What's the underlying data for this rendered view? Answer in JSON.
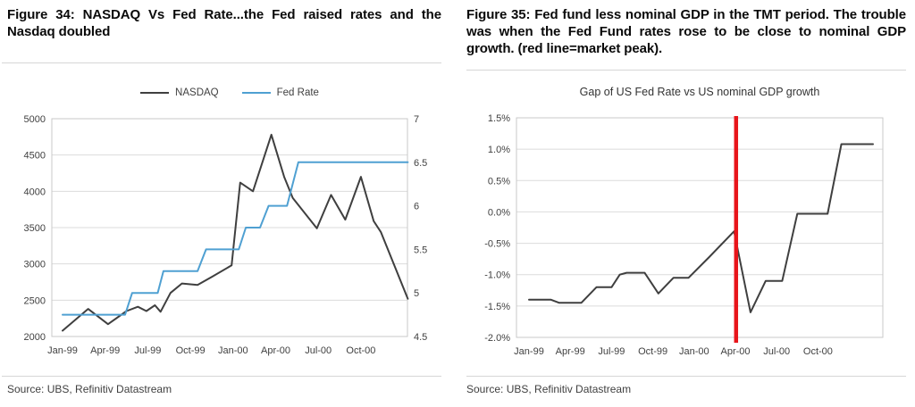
{
  "figure34": {
    "title": "Figure 34: NASDAQ Vs Fed Rate...the Fed raised rates and the Nasdaq doubled",
    "source": "Source: UBS, Refinitiv Datastream"
  },
  "figure35": {
    "title": "Figure 35: Fed fund less nominal GDP in the TMT period. The trouble was when the Fed Fund rates rose to be close to nominal GDP growth. (red line=market peak).",
    "source": "Source: UBS, Refinitiv Datastream"
  },
  "colors": {
    "gridline": "#dbdbdb",
    "plot_border": "#c9c9c9",
    "axis_text": "#404040",
    "market_peak_line": "#e8151b"
  },
  "chart_data": [
    {
      "id": "nasdaq_vs_fed_rate",
      "type": "line",
      "title": "",
      "grid": "horizontal",
      "legend_position": "top-center",
      "x_unit": "months since Jan-99",
      "x_tick_labels": [
        "Jan-99",
        "Apr-99",
        "Jul-99",
        "Oct-99",
        "Jan-00",
        "Apr-00",
        "Jul-00",
        "Oct-00"
      ],
      "x_tick_months": [
        0,
        3,
        6,
        9,
        12,
        15,
        18,
        21
      ],
      "y_left_axis": {
        "min": 2000,
        "max": 5000,
        "tick_labels": [
          "5000",
          "4500",
          "4000",
          "3500",
          "3000",
          "2500",
          "2000"
        ]
      },
      "y_right_axis": {
        "min": 4.5,
        "max": 7,
        "tick_labels": [
          "7",
          "6.5",
          "6",
          "5.5",
          "5",
          "4.5"
        ]
      },
      "series": [
        {
          "name": "NASDAQ",
          "axis": "left",
          "color": "#3f3f3f",
          "points": [
            [
              0,
              2080
            ],
            [
              1.8,
              2380
            ],
            [
              3.2,
              2170
            ],
            [
              4.5,
              2350
            ],
            [
              5.3,
              2410
            ],
            [
              5.9,
              2350
            ],
            [
              6.5,
              2430
            ],
            [
              6.9,
              2340
            ],
            [
              7.6,
              2600
            ],
            [
              8.4,
              2730
            ],
            [
              9.5,
              2710
            ],
            [
              10.5,
              2820
            ],
            [
              11.9,
              2980
            ],
            [
              12.5,
              4120
            ],
            [
              13.4,
              4000
            ],
            [
              14.7,
              4780
            ],
            [
              15.6,
              4200
            ],
            [
              16.2,
              3910
            ],
            [
              17.9,
              3490
            ],
            [
              18.9,
              3950
            ],
            [
              19.9,
              3610
            ],
            [
              21.0,
              4200
            ],
            [
              21.9,
              3590
            ],
            [
              22.4,
              3440
            ],
            [
              24.3,
              2520
            ]
          ]
        },
        {
          "name": "Fed Rate",
          "axis": "right",
          "color": "#4fa0d2",
          "points": [
            [
              0,
              4.75
            ],
            [
              4.4,
              4.75
            ],
            [
              4.9,
              5.0
            ],
            [
              6.7,
              5.0
            ],
            [
              7.1,
              5.25
            ],
            [
              9.5,
              5.25
            ],
            [
              10.1,
              5.5
            ],
            [
              12.4,
              5.5
            ],
            [
              12.9,
              5.75
            ],
            [
              13.9,
              5.75
            ],
            [
              14.5,
              6.0
            ],
            [
              15.8,
              6.0
            ],
            [
              16.6,
              6.5
            ],
            [
              24.3,
              6.5
            ]
          ]
        }
      ]
    },
    {
      "id": "fed_gdp_gap",
      "type": "line",
      "title": "Gap of US Fed Rate vs US nominal GDP growth",
      "grid": "horizontal",
      "x_unit": "months since Jan-99",
      "x_tick_labels": [
        "Jan-99",
        "Apr-99",
        "Jul-99",
        "Oct-99",
        "Jan-00",
        "Apr-00",
        "Jul-00",
        "Oct-00"
      ],
      "x_tick_months": [
        0,
        3,
        6,
        9,
        12,
        15,
        18,
        21
      ],
      "y_axis": {
        "min": -2.0,
        "max": 1.5,
        "tick_labels": [
          "1.5%",
          "1.0%",
          "0.5%",
          "0.0%",
          "-0.5%",
          "-1.0%",
          "-1.5%",
          "-2.0%"
        ]
      },
      "marker_line": {
        "x_month": 15.05,
        "color": "#e8151b",
        "meaning": "market peak"
      },
      "series": [
        {
          "name": "Fed fund less nominal GDP",
          "color": "#3f3f3f",
          "points": [
            [
              0,
              -1.4
            ],
            [
              1.6,
              -1.4
            ],
            [
              2.2,
              -1.45
            ],
            [
              3.8,
              -1.45
            ],
            [
              4.9,
              -1.2
            ],
            [
              6.0,
              -1.2
            ],
            [
              6.6,
              -1.0
            ],
            [
              7.1,
              -0.97
            ],
            [
              8.4,
              -0.97
            ],
            [
              9.4,
              -1.3
            ],
            [
              10.5,
              -1.05
            ],
            [
              11.6,
              -1.05
            ],
            [
              13.1,
              -0.72
            ],
            [
              14.9,
              -0.31
            ],
            [
              16.1,
              -1.6
            ],
            [
              17.2,
              -1.1
            ],
            [
              18.4,
              -1.1
            ],
            [
              19.5,
              -0.03
            ],
            [
              21.7,
              -0.03
            ],
            [
              22.7,
              1.08
            ],
            [
              25.0,
              1.08
            ]
          ]
        }
      ]
    }
  ]
}
